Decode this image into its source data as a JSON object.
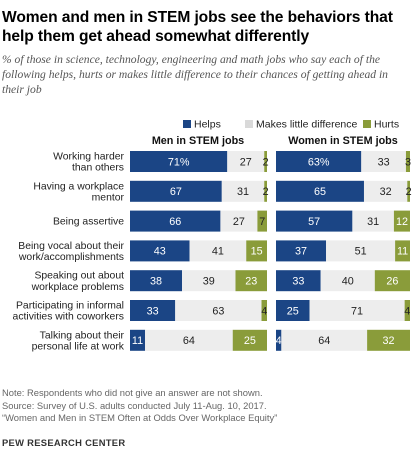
{
  "header": {
    "title": "Women and men in STEM jobs see the behaviors that help them get ahead somewhat differently",
    "subtitle": "% of those in science, technology, engineering and math jobs who say each of the following helps, hurts or makes little difference to their chances of getting ahead in their job"
  },
  "footer": {
    "note_lines": [
      "Note: Respondents who did not give an answer are not shown.",
      "Source: Survey of U.S. adults conducted July 11-Aug. 10, 2017.",
      "“Women and Men in STEM Often at Odds Over Workplace Equity”"
    ],
    "brand": "PEW RESEARCH CENTER"
  },
  "chart_data": {
    "type": "bar",
    "stacked": true,
    "orientation": "horizontal",
    "legend_position": "top",
    "colors": {
      "helps": "#1b4585",
      "little": "#ededed",
      "hurts": "#8a9c3a"
    },
    "categories": [
      "Working harder than others",
      "Having a workplace mentor",
      "Being assertive",
      "Being vocal about their work/accomplishments",
      "Speaking out about workplace problems",
      "Participating in informal activities with coworkers",
      "Talking about their personal life at work"
    ],
    "legend": [
      "Helps",
      "Makes little difference",
      "Hurts"
    ],
    "panels": [
      {
        "title": "Men in STEM jobs",
        "series": [
          {
            "name": "Helps",
            "values": [
              71,
              67,
              66,
              43,
              38,
              33,
              11
            ],
            "labels": [
              "71%",
              "67",
              "66",
              "43",
              "38",
              "33",
              "11"
            ]
          },
          {
            "name": "Makes little difference",
            "values": [
              27,
              31,
              27,
              41,
              39,
              63,
              64
            ],
            "labels": [
              "27",
              "31",
              "27",
              "41",
              "39",
              "63",
              "64"
            ]
          },
          {
            "name": "Hurts",
            "values": [
              2,
              2,
              7,
              15,
              23,
              4,
              25
            ],
            "labels": [
              "2",
              "2",
              "7",
              "15",
              "23",
              "4",
              "25"
            ]
          }
        ]
      },
      {
        "title": "Women in STEM jobs",
        "series": [
          {
            "name": "Helps",
            "values": [
              63,
              65,
              57,
              37,
              33,
              25,
              4
            ],
            "labels": [
              "63%",
              "65",
              "57",
              "37",
              "33",
              "25",
              "4"
            ]
          },
          {
            "name": "Makes little difference",
            "values": [
              33,
              32,
              31,
              51,
              40,
              71,
              64
            ],
            "labels": [
              "33",
              "32",
              "31",
              "51",
              "40",
              "71",
              "64"
            ]
          },
          {
            "name": "Hurts",
            "values": [
              3,
              2,
              12,
              11,
              26,
              4,
              32
            ],
            "labels": [
              "3",
              "2",
              "12",
              "11",
              "26",
              "4",
              "32"
            ]
          }
        ]
      }
    ]
  }
}
